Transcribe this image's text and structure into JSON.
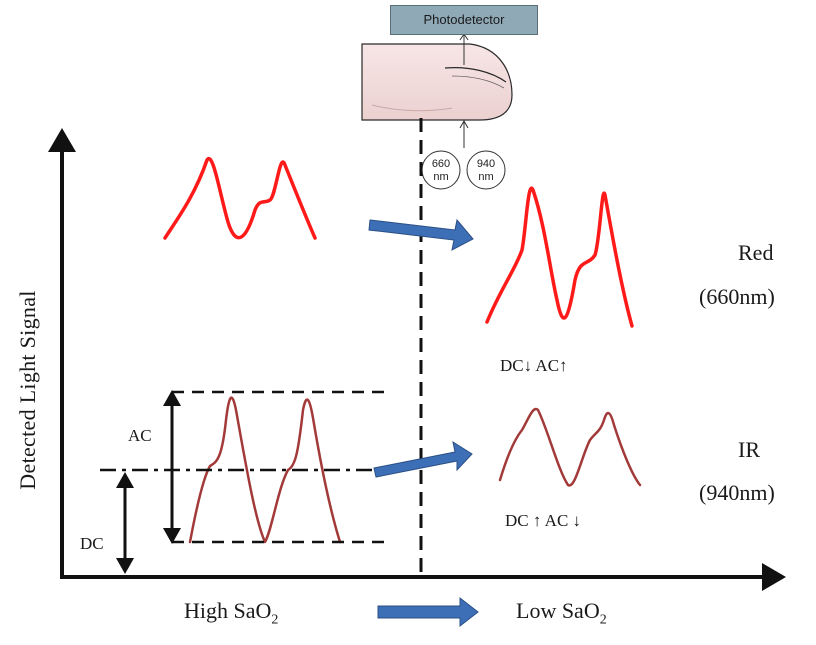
{
  "diagram": {
    "sensor": {
      "photodetector_label": "Photodetector",
      "led_red": {
        "value": "660",
        "unit": "nm"
      },
      "led_ir": {
        "value": "940",
        "unit": "nm"
      }
    },
    "axes": {
      "y_label": "Detected Light  Signal",
      "x_left_label": {
        "main": "High SaO",
        "sub": "2"
      },
      "x_right_label": {
        "main": "Low SaO",
        "sub": "2"
      }
    },
    "markers": {
      "ac": "AC",
      "dc": "DC"
    },
    "rows": {
      "red": {
        "name": "Red",
        "wavelength": "(660nm)",
        "change": "DC↓  AC↑"
      },
      "ir": {
        "name": "IR",
        "wavelength": "(940nm)",
        "change": "DC ↑  AC ↓"
      }
    },
    "colors": {
      "red_wave": "#ff1a1a",
      "ir_wave": "#a33a3a",
      "arrow_blue": "#3d6fb6",
      "photodetector_fill": "#8fa9b7",
      "finger_fill": "#f3dede"
    }
  }
}
